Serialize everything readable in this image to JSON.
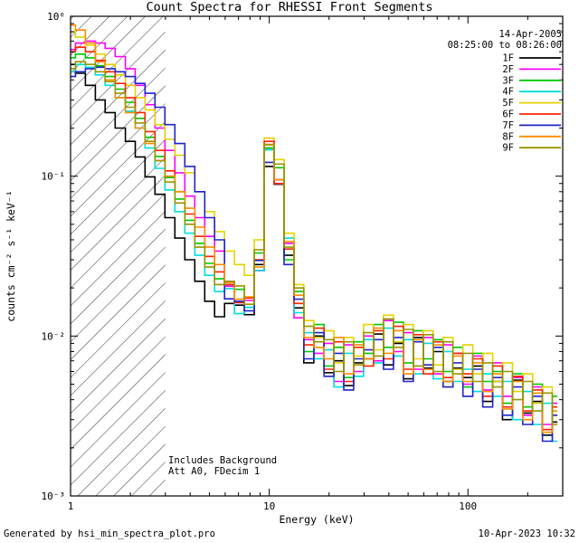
{
  "title": "Count Spectra for RHESSI Front Segments",
  "footer": {
    "generated_by": "Generated by hsi_min_spectra_plot.pro",
    "printed": "10-Apr-2023 10:32"
  },
  "chart_data": {
    "type": "line",
    "line_mode": "histogram-step",
    "title": "Count Spectra for RHESSI Front Segments",
    "xlabel": "Energy (keV)",
    "ylabel": "counts cm⁻² s⁻¹ keV⁻¹",
    "x_scale": "log",
    "y_scale": "log",
    "xlim": [
      1,
      300
    ],
    "ylim": [
      0.001,
      1
    ],
    "grid": false,
    "legend_position": "top-right-inside",
    "x_ticks": [
      {
        "value": 1,
        "label": "1"
      },
      {
        "value": 10,
        "label": "10"
      },
      {
        "value": 100,
        "label": "100"
      }
    ],
    "y_ticks": [
      {
        "value": 1,
        "label": "10⁰"
      },
      {
        "value": 0.1,
        "label": "10⁻¹"
      },
      {
        "value": 0.01,
        "label": "10⁻²"
      },
      {
        "value": 0.001,
        "label": "10⁻³"
      }
    ],
    "annotations": {
      "date": "14-Apr-2005",
      "time_range": "08:25:00 to 08:26:00",
      "background_note": "Includes Background",
      "attenuator_note": "Att A0, FDecim 1"
    },
    "hatch_region": {
      "x_from": 1,
      "x_to": 3,
      "style": "diagonal-hatch"
    },
    "x": [
      1.0,
      1.12,
      1.26,
      1.41,
      1.58,
      1.78,
      2.0,
      2.24,
      2.51,
      2.82,
      3.16,
      3.55,
      3.98,
      4.47,
      5.01,
      5.62,
      6.31,
      7.08,
      7.94,
      8.91,
      10.0,
      11.2,
      12.6,
      14.1,
      15.8,
      17.8,
      20.0,
      22.4,
      25.1,
      28.2,
      31.6,
      35.5,
      39.8,
      44.7,
      50.1,
      56.2,
      63.1,
      70.8,
      79.4,
      89.1,
      100,
      112,
      126,
      141,
      158,
      178,
      200,
      224,
      251,
      282
    ],
    "series": [
      {
        "name": "1F",
        "color": "#000000",
        "values": [
          0.5,
          0.44,
          0.37,
          0.3,
          0.25,
          0.2,
          0.165,
          0.132,
          0.099,
          0.077,
          0.055,
          0.041,
          0.03,
          0.022,
          0.0165,
          0.0132,
          0.016,
          0.0156,
          0.0136,
          0.028,
          0.115,
          0.089,
          0.032,
          0.015,
          0.0068,
          0.01,
          0.0059,
          0.007,
          0.0049,
          0.0068,
          0.0072,
          0.0103,
          0.0066,
          0.009,
          0.0054,
          0.0098,
          0.0063,
          0.008,
          0.0052,
          0.0063,
          0.0055,
          0.0065,
          0.0039,
          0.0052,
          0.003,
          0.0053,
          0.0033,
          0.0039,
          0.0024,
          0.0029
        ]
      },
      {
        "name": "2F",
        "color": "#FF00FF",
        "values": [
          0.62,
          0.68,
          0.7,
          0.68,
          0.63,
          0.56,
          0.47,
          0.37,
          0.28,
          0.2,
          0.145,
          0.105,
          0.075,
          0.055,
          0.042,
          0.034,
          0.0205,
          0.0162,
          0.0167,
          0.0257,
          0.15,
          0.09,
          0.038,
          0.013,
          0.0095,
          0.0078,
          0.009,
          0.0052,
          0.0088,
          0.006,
          0.01,
          0.007,
          0.0125,
          0.008,
          0.0105,
          0.0062,
          0.0098,
          0.0058,
          0.0088,
          0.0078,
          0.005,
          0.0075,
          0.0046,
          0.0068,
          0.0042,
          0.0055,
          0.0032,
          0.0048,
          0.0028,
          0.0038
        ]
      },
      {
        "name": "3F",
        "color": "#00C800",
        "values": [
          0.55,
          0.58,
          0.55,
          0.49,
          0.42,
          0.35,
          0.29,
          0.23,
          0.175,
          0.133,
          0.098,
          0.072,
          0.053,
          0.038,
          0.0285,
          0.0228,
          0.021,
          0.0196,
          0.0151,
          0.0331,
          0.15,
          0.113,
          0.03,
          0.019,
          0.008,
          0.0118,
          0.0065,
          0.0085,
          0.0055,
          0.0092,
          0.0078,
          0.0118,
          0.0085,
          0.0122,
          0.0068,
          0.0108,
          0.0072,
          0.0095,
          0.006,
          0.0085,
          0.0048,
          0.0078,
          0.0052,
          0.006,
          0.0038,
          0.0058,
          0.0036,
          0.005,
          0.0026,
          0.0042
        ]
      },
      {
        "name": "4F",
        "color": "#00DDDD",
        "values": [
          0.45,
          0.5,
          0.48,
          0.43,
          0.37,
          0.31,
          0.255,
          0.2,
          0.15,
          0.112,
          0.082,
          0.06,
          0.044,
          0.032,
          0.024,
          0.019,
          0.0198,
          0.0138,
          0.0151,
          0.0257,
          0.146,
          0.09,
          0.041,
          0.014,
          0.0105,
          0.0072,
          0.0082,
          0.0048,
          0.0078,
          0.0056,
          0.0095,
          0.0068,
          0.0112,
          0.0075,
          0.0095,
          0.0058,
          0.009,
          0.0054,
          0.008,
          0.0052,
          0.0062,
          0.0045,
          0.0058,
          0.0042,
          0.0052,
          0.003,
          0.0045,
          0.0028,
          0.0038,
          0.0022
        ]
      },
      {
        "name": "5F",
        "color": "#E6D200",
        "values": [
          0.8,
          0.74,
          0.66,
          0.58,
          0.5,
          0.43,
          0.37,
          0.31,
          0.26,
          0.21,
          0.17,
          0.135,
          0.105,
          0.08,
          0.06,
          0.045,
          0.034,
          0.028,
          0.024,
          0.04,
          0.173,
          0.127,
          0.044,
          0.021,
          0.0125,
          0.0098,
          0.0108,
          0.0068,
          0.0098,
          0.0075,
          0.0118,
          0.0082,
          0.0135,
          0.0092,
          0.0118,
          0.0072,
          0.0108,
          0.0066,
          0.0098,
          0.0062,
          0.0088,
          0.0058,
          0.0078,
          0.0052,
          0.0068,
          0.0045,
          0.0058,
          0.0038,
          0.0048,
          0.0032
        ]
      },
      {
        "name": "6F",
        "color": "#FF2200",
        "values": [
          0.6,
          0.64,
          0.6,
          0.53,
          0.45,
          0.38,
          0.31,
          0.25,
          0.19,
          0.145,
          0.108,
          0.08,
          0.058,
          0.042,
          0.0315,
          0.0252,
          0.021,
          0.0162,
          0.0173,
          0.03,
          0.165,
          0.09,
          0.035,
          0.016,
          0.0088,
          0.0112,
          0.0062,
          0.0092,
          0.0052,
          0.0085,
          0.0065,
          0.0108,
          0.0072,
          0.0115,
          0.0062,
          0.0102,
          0.0058,
          0.0092,
          0.0055,
          0.0078,
          0.0058,
          0.0072,
          0.0042,
          0.0065,
          0.0036,
          0.0056,
          0.0034,
          0.0046,
          0.0026,
          0.0036
        ]
      },
      {
        "name": "7F",
        "color": "#2222CC",
        "values": [
          0.42,
          0.45,
          0.47,
          0.48,
          0.47,
          0.45,
          0.42,
          0.38,
          0.33,
          0.27,
          0.21,
          0.16,
          0.115,
          0.08,
          0.055,
          0.04,
          0.0171,
          0.0165,
          0.0144,
          0.0297,
          0.122,
          0.095,
          0.028,
          0.017,
          0.0072,
          0.0105,
          0.0056,
          0.0078,
          0.0046,
          0.0072,
          0.0082,
          0.0095,
          0.0062,
          0.0098,
          0.0052,
          0.0092,
          0.0066,
          0.0085,
          0.0048,
          0.0068,
          0.0042,
          0.0062,
          0.0036,
          0.0055,
          0.0032,
          0.0048,
          0.0028,
          0.0042,
          0.0022,
          0.0032
        ]
      },
      {
        "name": "8F",
        "color": "#FF8C00",
        "values": [
          0.88,
          0.82,
          0.68,
          0.52,
          0.4,
          0.31,
          0.25,
          0.2,
          0.16,
          0.125,
          0.1,
          0.08,
          0.063,
          0.048,
          0.036,
          0.028,
          0.0216,
          0.017,
          0.0176,
          0.027,
          0.158,
          0.095,
          0.039,
          0.018,
          0.0098,
          0.0085,
          0.0072,
          0.0098,
          0.0058,
          0.0088,
          0.0072,
          0.0112,
          0.0078,
          0.0108,
          0.0058,
          0.0095,
          0.0062,
          0.0088,
          0.0052,
          0.0075,
          0.0052,
          0.0068,
          0.0045,
          0.0058,
          0.0035,
          0.0052,
          0.003,
          0.0044,
          0.0025,
          0.0034
        ]
      },
      {
        "name": "9F",
        "color": "#969600",
        "values": [
          0.47,
          0.52,
          0.5,
          0.45,
          0.39,
          0.33,
          0.27,
          0.215,
          0.165,
          0.125,
          0.092,
          0.068,
          0.05,
          0.036,
          0.027,
          0.021,
          0.022,
          0.0206,
          0.0158,
          0.0347,
          0.157,
          0.119,
          0.036,
          0.02,
          0.0115,
          0.0092,
          0.0095,
          0.006,
          0.0092,
          0.0066,
          0.0105,
          0.0075,
          0.0128,
          0.0085,
          0.011,
          0.0065,
          0.0102,
          0.006,
          0.0092,
          0.0058,
          0.0078,
          0.0052,
          0.0068,
          0.0048,
          0.006,
          0.004,
          0.0052,
          0.0034,
          0.0044,
          0.0028
        ]
      }
    ]
  }
}
